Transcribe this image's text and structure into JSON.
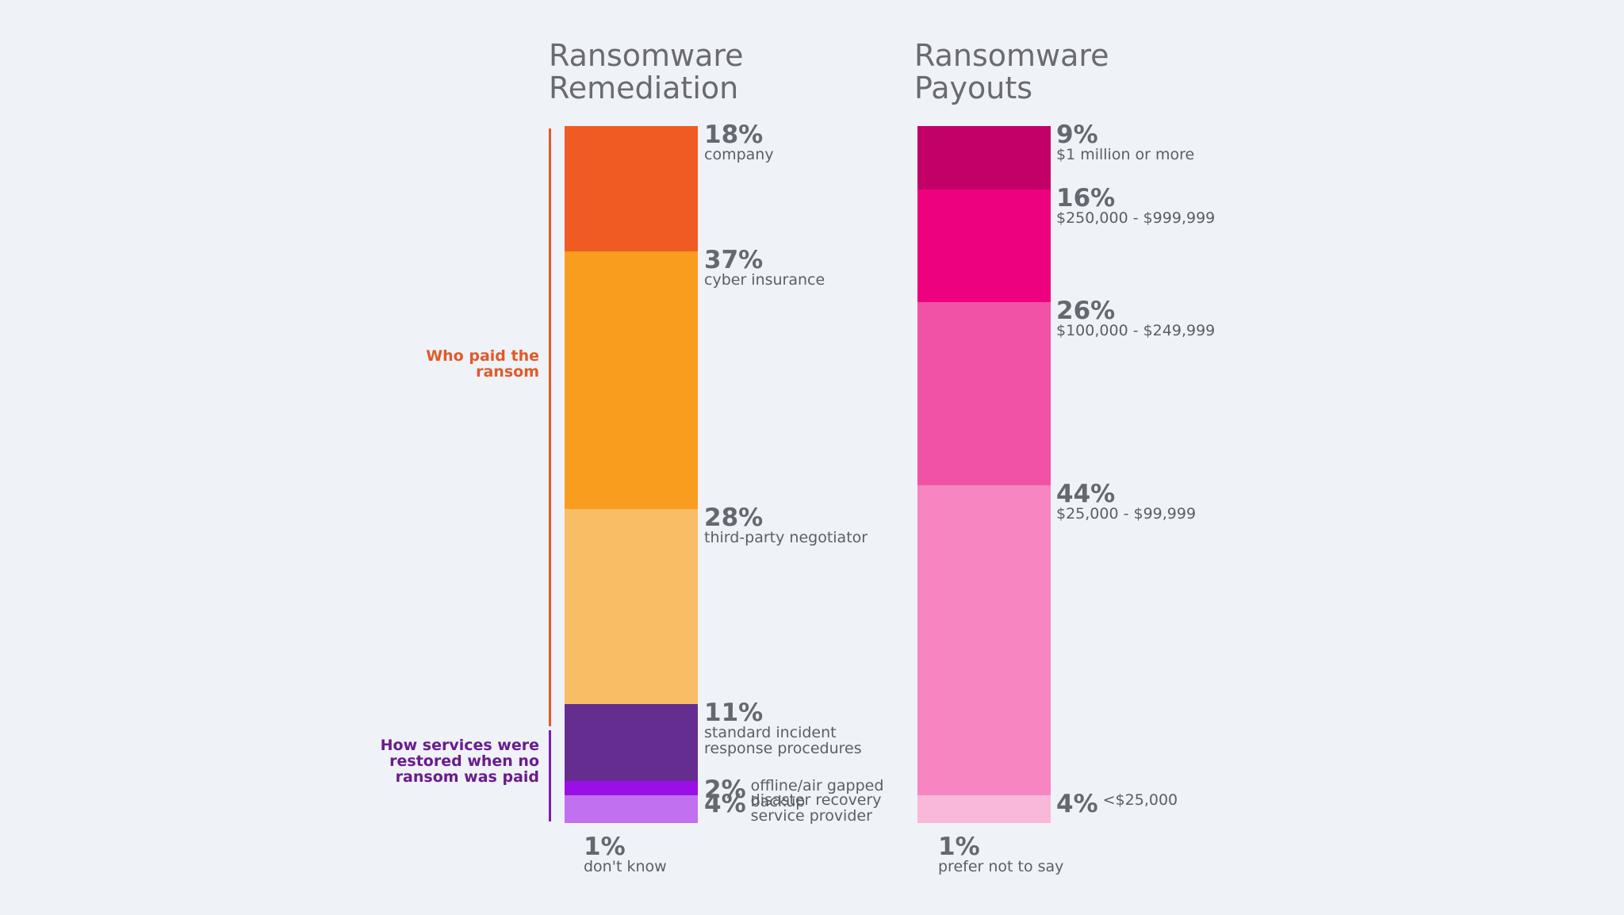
{
  "chart_data": [
    {
      "type": "stacked-bar",
      "title": "Ransomware Remediation",
      "groups": [
        {
          "label": "Who paid the ransom",
          "color": "#e05a2b"
        },
        {
          "label": "How services were restored when no ransom was paid",
          "color": "#6a1b8e"
        }
      ],
      "segments": [
        {
          "pct": "18%",
          "value": 18,
          "label": "company",
          "color": "#f05a23",
          "group": 0
        },
        {
          "pct": "37%",
          "value": 37,
          "label": "cyber insurance",
          "color": "#f89d1e",
          "group": 0
        },
        {
          "pct": "28%",
          "value": 28,
          "label": "third-party negotiator",
          "color": "#f9bd65",
          "group": 0
        },
        {
          "pct": "11%",
          "value": 11,
          "label": "standard incident response procedures",
          "color": "#652d90",
          "group": 1
        },
        {
          "pct": "2%",
          "value": 2,
          "label": "offline/air gapped backup",
          "color": "#9b0fe6",
          "group": 1
        },
        {
          "pct": "4%",
          "value": 4,
          "label": "disaster recovery service provider",
          "color": "#c170f0",
          "group": 1
        }
      ],
      "footnote": {
        "pct": "1%",
        "label": "don't know"
      }
    },
    {
      "type": "stacked-bar",
      "title": "Ransomware Payouts",
      "segments": [
        {
          "pct": "9%",
          "value": 9,
          "label": "$1 million or more",
          "color": "#c20067"
        },
        {
          "pct": "16%",
          "value": 16,
          "label": "$250,000 - $999,999",
          "color": "#ed017e"
        },
        {
          "pct": "26%",
          "value": 26,
          "label": "$100,000 - $249,999",
          "color": "#f252a6"
        },
        {
          "pct": "44%",
          "value": 44,
          "label": "$25,000 - $99,999",
          "color": "#f785c2"
        },
        {
          "pct": "4%",
          "value": 4,
          "label": "<$25,000",
          "color": "#f9b7da"
        }
      ],
      "footnote": {
        "pct": "1%",
        "label": "prefer not to say"
      }
    }
  ],
  "ui": {
    "left_title": "Ransomware\nRemediation",
    "right_title": "Ransomware\nPayouts",
    "left_desc_display": [
      "company",
      "cyber insurance",
      "third-party negotiator",
      "standard incident\nresponse procedures",
      "offline/air gapped\nbackup",
      "disaster recovery\nservice provider"
    ],
    "bracket_paid": "Who paid the\nransom",
    "bracket_restored": "How services were\nrestored when no\nransom was paid"
  }
}
